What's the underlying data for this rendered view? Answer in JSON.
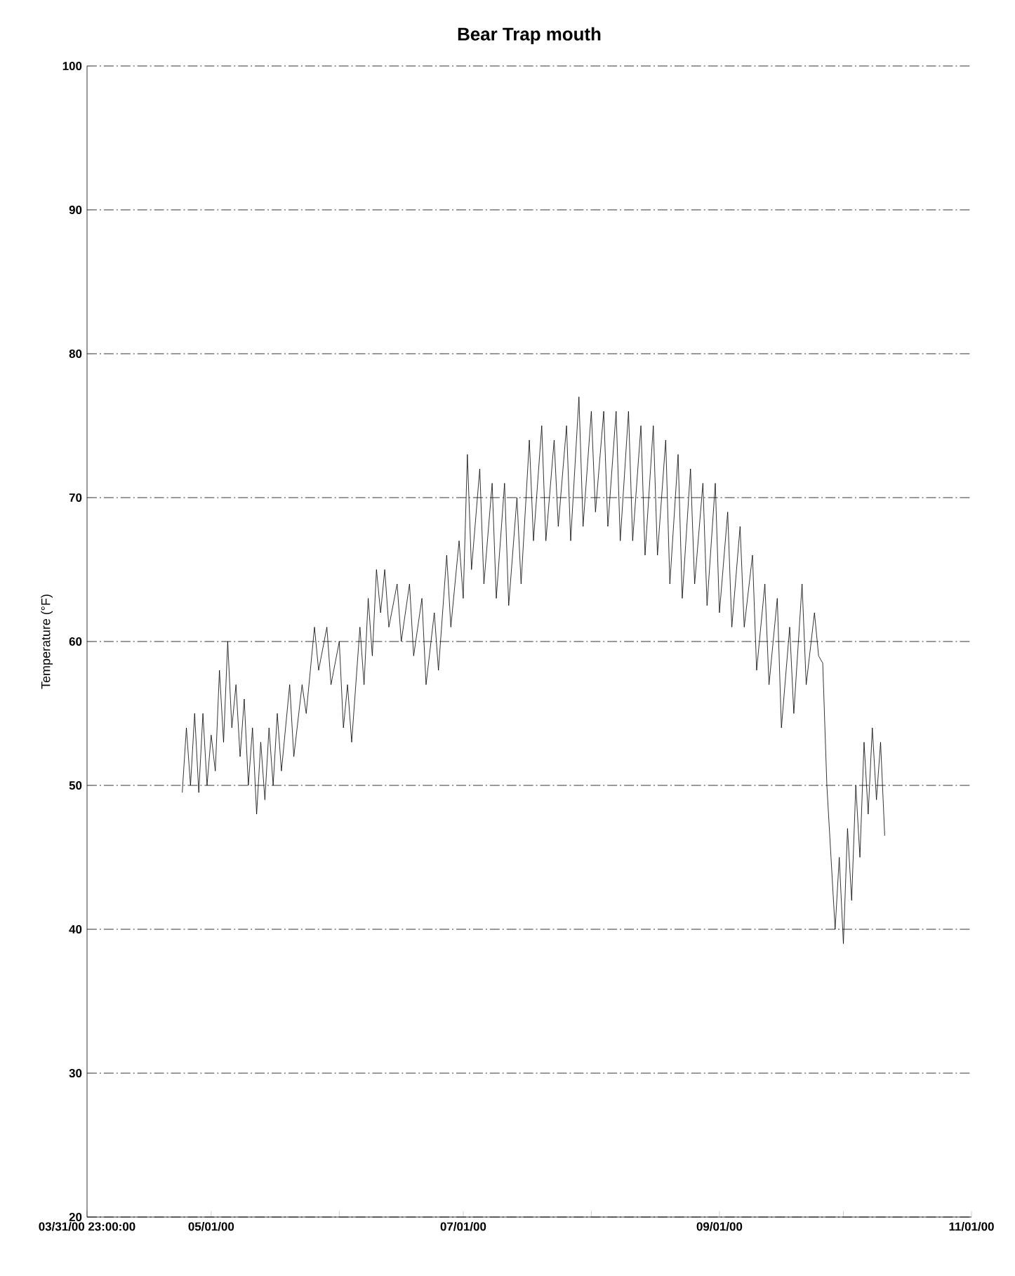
{
  "chart_data": {
    "type": "line",
    "title": "Bear Trap mouth",
    "ylabel": "Temperature (°F)",
    "color": "#000000",
    "x": [
      "2000-04-24",
      "2000-04-25",
      "2000-04-26",
      "2000-04-27",
      "2000-04-28",
      "2000-04-29",
      "2000-04-30",
      "2000-05-01",
      "2000-05-02",
      "2000-05-03",
      "2000-05-04",
      "2000-05-05",
      "2000-05-06",
      "2000-05-07",
      "2000-05-08",
      "2000-05-09",
      "2000-05-10",
      "2000-05-11",
      "2000-05-12",
      "2000-05-13",
      "2000-05-14",
      "2000-05-15",
      "2000-05-16",
      "2000-05-17",
      "2000-05-18",
      "2000-05-20",
      "2000-05-21",
      "2000-05-23",
      "2000-05-24",
      "2000-05-26",
      "2000-05-27",
      "2000-05-29",
      "2000-05-30",
      "2000-06-01",
      "2000-06-02",
      "2000-06-03",
      "2000-06-04",
      "2000-06-06",
      "2000-06-07",
      "2000-06-08",
      "2000-06-09",
      "2000-06-10",
      "2000-06-11",
      "2000-06-12",
      "2000-06-13",
      "2000-06-15",
      "2000-06-16",
      "2000-06-18",
      "2000-06-19",
      "2000-06-21",
      "2000-06-22",
      "2000-06-24",
      "2000-06-25",
      "2000-06-27",
      "2000-06-28",
      "2000-06-30",
      "2000-07-01",
      "2000-07-02",
      "2000-07-03",
      "2000-07-05",
      "2000-07-06",
      "2000-07-08",
      "2000-07-09",
      "2000-07-11",
      "2000-07-12",
      "2000-07-14",
      "2000-07-15",
      "2000-07-17",
      "2000-07-18",
      "2000-07-20",
      "2000-07-21",
      "2000-07-23",
      "2000-07-24",
      "2000-07-26",
      "2000-07-27",
      "2000-07-29",
      "2000-07-30",
      "2000-08-01",
      "2000-08-02",
      "2000-08-04",
      "2000-08-05",
      "2000-08-07",
      "2000-08-08",
      "2000-08-10",
      "2000-08-11",
      "2000-08-13",
      "2000-08-14",
      "2000-08-16",
      "2000-08-17",
      "2000-08-19",
      "2000-08-20",
      "2000-08-22",
      "2000-08-23",
      "2000-08-25",
      "2000-08-26",
      "2000-08-28",
      "2000-08-29",
      "2000-08-31",
      "2000-09-01",
      "2000-09-03",
      "2000-09-04",
      "2000-09-06",
      "2000-09-07",
      "2000-09-09",
      "2000-09-10",
      "2000-09-12",
      "2000-09-13",
      "2000-09-15",
      "2000-09-16",
      "2000-09-18",
      "2000-09-19",
      "2000-09-21",
      "2000-09-22",
      "2000-09-24",
      "2000-09-25",
      "2000-09-26",
      "2000-09-27",
      "2000-09-28",
      "2000-09-29",
      "2000-09-30",
      "2000-10-01",
      "2000-10-02",
      "2000-10-03",
      "2000-10-04",
      "2000-10-05",
      "2000-10-06",
      "2000-10-07",
      "2000-10-08",
      "2000-10-09",
      "2000-10-10",
      "2000-10-11"
    ],
    "values": [
      49.5,
      54,
      50,
      55,
      49.5,
      55,
      50,
      53.5,
      51,
      58,
      53,
      60,
      54,
      57,
      52,
      56,
      50,
      54,
      48,
      53,
      49,
      54,
      50,
      55,
      51,
      57,
      52,
      57,
      55,
      61,
      58,
      61,
      57,
      60,
      54,
      57,
      53,
      61,
      57,
      63,
      59,
      65,
      62,
      65,
      61,
      64,
      60,
      64,
      59,
      63,
      57,
      62,
      58,
      66,
      61,
      67,
      63,
      73,
      65,
      72,
      64,
      71,
      63,
      71,
      62.5,
      70,
      64,
      74,
      67,
      75,
      67,
      74,
      68,
      75,
      67,
      77,
      68,
      76,
      69,
      76,
      68,
      76,
      67,
      76,
      67,
      75,
      66,
      75,
      66,
      74,
      64,
      73,
      63,
      72,
      64,
      71,
      62.5,
      71,
      62,
      69,
      61,
      68,
      61,
      66,
      58,
      64,
      57,
      63,
      54,
      61,
      55,
      64,
      57,
      62,
      59,
      58.5,
      50,
      45,
      40,
      45,
      39,
      47,
      42,
      50,
      45,
      53,
      48,
      54,
      49,
      53,
      46.5
    ],
    "xlim": [
      "2000-03-31T23:00",
      "2000-11-01"
    ],
    "xticks": [
      {
        "value": "2000-03-31T23:00",
        "label": "03/31/00 23:00:00"
      },
      {
        "value": "2000-05-01",
        "label": "05/01/00"
      },
      {
        "value": "2000-06-01",
        "label": null
      },
      {
        "value": "2000-07-01",
        "label": "07/01/00"
      },
      {
        "value": "2000-08-01",
        "label": null
      },
      {
        "value": "2000-09-01",
        "label": "09/01/00"
      },
      {
        "value": "2000-10-01",
        "label": null
      },
      {
        "value": "2000-11-01",
        "label": "11/01/00"
      }
    ],
    "ylim": [
      20,
      100
    ],
    "yticks": [
      20,
      30,
      40,
      50,
      60,
      70,
      80,
      90,
      100
    ],
    "grid": "y"
  }
}
